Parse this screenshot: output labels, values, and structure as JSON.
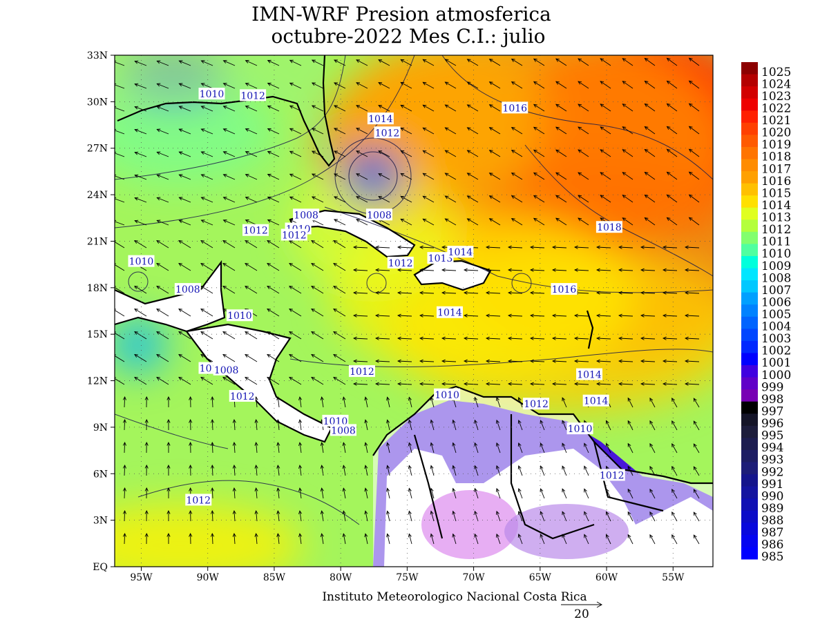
{
  "title": {
    "line1": "IMN-WRF  Presion atmosferica",
    "line2": "octubre-2022 Mes C.I.: julio"
  },
  "map": {
    "lat_ticks": [
      "33N",
      "30N",
      "27N",
      "24N",
      "21N",
      "18N",
      "15N",
      "12N",
      "9N",
      "6N",
      "3N",
      "EQ"
    ],
    "lon_ticks": [
      "95W",
      "90W",
      "85W",
      "80W",
      "75W",
      "70W",
      "65W",
      "60W",
      "55W"
    ],
    "lon_range": [
      -97,
      -52
    ],
    "lat_range": [
      0,
      33
    ],
    "lon_tick_values": [
      -95,
      -90,
      -85,
      -80,
      -75,
      -70,
      -65,
      -60,
      -55
    ],
    "lat_tick_values": [
      33,
      30,
      27,
      24,
      21,
      18,
      15,
      12,
      9,
      6,
      3,
      0
    ],
    "grid": "dotted"
  },
  "isobar_labels": [
    {
      "text": "1010",
      "lon": -89.7,
      "lat": 30.5
    },
    {
      "text": "1012",
      "lon": -86.6,
      "lat": 30.4
    },
    {
      "text": "1014",
      "lon": -77.0,
      "lat": 28.9
    },
    {
      "text": "1012",
      "lon": -76.5,
      "lat": 28.0
    },
    {
      "text": "1016",
      "lon": -66.9,
      "lat": 29.6
    },
    {
      "text": "1008",
      "lon": -82.6,
      "lat": 22.7
    },
    {
      "text": "1008",
      "lon": -77.1,
      "lat": 22.7
    },
    {
      "text": "1012",
      "lon": -86.4,
      "lat": 21.7
    },
    {
      "text": "1010",
      "lon": -83.2,
      "lat": 21.8
    },
    {
      "text": "1012",
      "lon": -83.5,
      "lat": 21.4
    },
    {
      "text": "1018",
      "lon": -59.8,
      "lat": 21.9
    },
    {
      "text": "1010",
      "lon": -95.0,
      "lat": 19.7
    },
    {
      "text": "1012",
      "lon": -75.5,
      "lat": 19.6
    },
    {
      "text": "1013",
      "lon": -72.5,
      "lat": 19.9
    },
    {
      "text": "1014",
      "lon": -71.0,
      "lat": 20.3
    },
    {
      "text": "1008",
      "lon": -91.5,
      "lat": 17.9
    },
    {
      "text": "1016",
      "lon": -63.2,
      "lat": 17.9
    },
    {
      "text": "1010",
      "lon": -87.6,
      "lat": 16.2
    },
    {
      "text": "1014",
      "lon": -71.8,
      "lat": 16.4
    },
    {
      "text": "1010",
      "lon": -89.7,
      "lat": 12.8
    },
    {
      "text": "1008",
      "lon": -88.6,
      "lat": 12.7
    },
    {
      "text": "1012",
      "lon": -78.4,
      "lat": 12.6
    },
    {
      "text": "1014",
      "lon": -61.3,
      "lat": 12.4
    },
    {
      "text": "1012",
      "lon": -87.4,
      "lat": 11.0
    },
    {
      "text": "1010",
      "lon": -72.0,
      "lat": 11.1
    },
    {
      "text": "1012",
      "lon": -65.3,
      "lat": 10.5
    },
    {
      "text": "1014",
      "lon": -60.8,
      "lat": 10.7
    },
    {
      "text": "1010",
      "lon": -80.4,
      "lat": 9.4
    },
    {
      "text": "1008",
      "lon": -79.8,
      "lat": 8.8
    },
    {
      "text": "1010",
      "lon": -62.0,
      "lat": 8.9
    },
    {
      "text": "1012",
      "lon": -59.6,
      "lat": 5.9
    },
    {
      "text": "1012",
      "lon": -90.7,
      "lat": 4.3
    }
  ],
  "colorbar": {
    "labels": [
      "1025",
      "1024",
      "1023",
      "1022",
      "1021",
      "1020",
      "1019",
      "1018",
      "1017",
      "1016",
      "1015",
      "1014",
      "1013",
      "1012",
      "1011",
      "1010",
      "1009",
      "1008",
      "1007",
      "1006",
      "1005",
      "1004",
      "1003",
      "1002",
      "1001",
      "1000",
      "999",
      "998",
      "997",
      "996",
      "995",
      "994",
      "993",
      "992",
      "991",
      "990",
      "989",
      "988",
      "987",
      "986",
      "985"
    ],
    "colors": [
      "#8c0000",
      "#b40000",
      "#d20000",
      "#ee0000",
      "#ff2000",
      "#ff4000",
      "#ff5a00",
      "#ff7400",
      "#ff8c00",
      "#ffa000",
      "#ffc000",
      "#ffe000",
      "#e0ff20",
      "#b4ff3c",
      "#82ff6e",
      "#50ffa0",
      "#00ffdc",
      "#00e6ff",
      "#00c8ff",
      "#00a0ff",
      "#0082ff",
      "#0064ff",
      "#0046ff",
      "#0028ff",
      "#0000ff",
      "#4000e0",
      "#6000c8",
      "#7800b4",
      "#000000",
      "#141428",
      "#1c1c3c",
      "#1c1c50",
      "#1c1c64",
      "#1c1c78",
      "#14148c",
      "#1414a0",
      "#1010b4",
      "#0c0cc8",
      "#0808dc",
      "#0404f0",
      "#0000ff"
    ]
  },
  "credit": "Instituto Meteorologico Nacional Costa Rica",
  "vector_scale": "20",
  "colors": {
    "land": "#ffffff",
    "border": "#000000",
    "contour": "#1a1a4a",
    "arrow": "#000000"
  }
}
